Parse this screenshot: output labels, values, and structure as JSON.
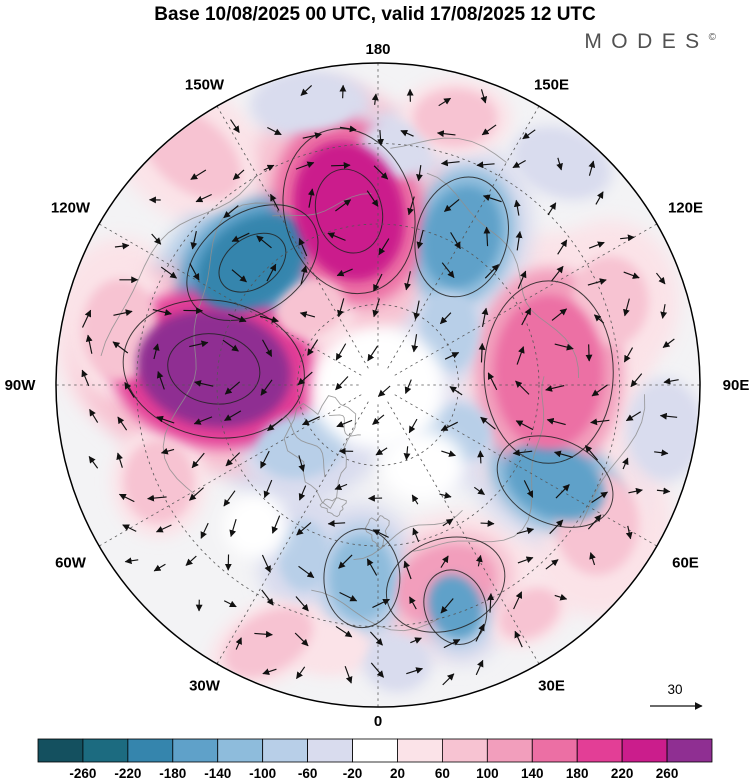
{
  "header": {
    "title": "Base 10/08/2025 00 UTC, valid 17/08/2025 12 UTC",
    "logo_text": "MODES",
    "logo_mark": "©"
  },
  "chart_data": {
    "type": "heatmap",
    "projection": "north_polar_stereographic",
    "title": "Base 10/08/2025 00 UTC, valid 17/08/2025 12 UTC",
    "longitude_labels": [
      {
        "text": "180",
        "lon": 180
      },
      {
        "text": "150W",
        "lon": -150
      },
      {
        "text": "150E",
        "lon": 150
      },
      {
        "text": "120W",
        "lon": -120
      },
      {
        "text": "120E",
        "lon": 120
      },
      {
        "text": "90W",
        "lon": -90
      },
      {
        "text": "90E",
        "lon": 90
      },
      {
        "text": "60W",
        "lon": -60
      },
      {
        "text": "60E",
        "lon": 60
      },
      {
        "text": "30W",
        "lon": -30
      },
      {
        "text": "30E",
        "lon": 30
      },
      {
        "text": "0",
        "lon": 0
      }
    ],
    "colorbar_levels": [
      -260,
      -220,
      -180,
      -140,
      -100,
      -60,
      -20,
      20,
      60,
      100,
      140,
      180,
      220,
      260
    ],
    "colorbar_colors": [
      "#14505f",
      "#1c6b80",
      "#3585ad",
      "#5fa1c9",
      "#8ebcdc",
      "#b8cfe8",
      "#d9dcee",
      "#ffffff",
      "#fbe3e8",
      "#f7c3d2",
      "#f29ebc",
      "#ec6fa4",
      "#e33e96",
      "#cb1d8c",
      "#8f2f92"
    ],
    "wind_reference": 30,
    "anomaly_centers": [
      {
        "fx": -0.09,
        "fy": -0.54,
        "v": 230,
        "rx": 0.17,
        "ry": 0.22,
        "rot": -15
      },
      {
        "fx": -0.51,
        "fy": -0.05,
        "v": 280,
        "rx": 0.24,
        "ry": 0.18,
        "rot": 10
      },
      {
        "fx": 0.53,
        "fy": -0.04,
        "v": 170,
        "rx": 0.17,
        "ry": 0.24,
        "rot": 0
      },
      {
        "fx": 0.21,
        "fy": 0.62,
        "v": 110,
        "rx": 0.16,
        "ry": 0.12,
        "rot": -20
      },
      {
        "fx": -0.58,
        "fy": -0.72,
        "v": 70,
        "rx": 0.18,
        "ry": 0.11,
        "rot": 40
      },
      {
        "fx": 0.68,
        "fy": 0.43,
        "v": 80,
        "rx": 0.13,
        "ry": 0.16,
        "rot": 0
      },
      {
        "fx": -0.34,
        "fy": 0.8,
        "v": 60,
        "rx": 0.15,
        "ry": 0.09,
        "rot": -30
      },
      {
        "fx": 0.24,
        "fy": -0.83,
        "v": 60,
        "rx": 0.13,
        "ry": 0.09,
        "rot": 0
      },
      {
        "fx": 0.72,
        "fy": -0.26,
        "v": 70,
        "rx": 0.12,
        "ry": 0.14,
        "rot": 0
      },
      {
        "fx": -0.39,
        "fy": -0.38,
        "v": -215,
        "rx": 0.19,
        "ry": 0.13,
        "rot": -35
      },
      {
        "fx": 0.26,
        "fy": -0.46,
        "v": -180,
        "rx": 0.12,
        "ry": 0.16,
        "rot": 15
      },
      {
        "fx": 0.55,
        "fy": 0.3,
        "v": -165,
        "rx": 0.16,
        "ry": 0.11,
        "rot": 25
      },
      {
        "fx": -0.05,
        "fy": 0.6,
        "v": -130,
        "rx": 0.1,
        "ry": 0.13,
        "rot": 0
      },
      {
        "fx": 0.24,
        "fy": 0.69,
        "v": -150,
        "rx": 0.08,
        "ry": 0.1,
        "rot": -20
      },
      {
        "fx": -0.24,
        "fy": 0.19,
        "v": -90,
        "rx": 0.14,
        "ry": 0.1,
        "rot": -10
      },
      {
        "fx": -0.21,
        "fy": -0.87,
        "v": -60,
        "rx": 0.14,
        "ry": 0.08,
        "rot": 0
      },
      {
        "fx": 0.05,
        "fy": -0.73,
        "v": -50,
        "rx": 0.11,
        "ry": 0.09,
        "rot": 0
      },
      {
        "fx": 0.24,
        "fy": 0.15,
        "v": -70,
        "rx": 0.11,
        "ry": 0.09,
        "rot": 0
      },
      {
        "fx": -0.23,
        "fy": 0.53,
        "v": -70,
        "rx": 0.08,
        "ry": 0.11,
        "rot": 0
      },
      {
        "fx": -0.8,
        "fy": -0.17,
        "v": 90,
        "rx": 0.12,
        "ry": 0.16,
        "rot": 0
      },
      {
        "fx": -0.68,
        "fy": 0.3,
        "v": 60,
        "rx": 0.11,
        "ry": 0.13,
        "rot": 0
      },
      {
        "fx": 0.22,
        "fy": -0.17,
        "v": -70,
        "rx": 0.09,
        "ry": 0.13,
        "rot": 0
      },
      {
        "fx": -0.21,
        "fy": -0.24,
        "v": 80,
        "rx": 0.11,
        "ry": 0.09,
        "rot": -20
      },
      {
        "fx": 0.89,
        "fy": 0.14,
        "v": -50,
        "rx": 0.09,
        "ry": 0.12,
        "rot": 0
      },
      {
        "fx": -0.15,
        "fy": 0.81,
        "v": 50,
        "rx": 0.11,
        "ry": 0.07,
        "rot": 0
      },
      {
        "fx": 0.06,
        "fy": 0.86,
        "v": -50,
        "rx": 0.08,
        "ry": 0.07,
        "rot": 0
      },
      {
        "fx": 0.57,
        "fy": -0.69,
        "v": -50,
        "rx": 0.12,
        "ry": 0.08,
        "rot": 20
      },
      {
        "fx": 0.47,
        "fy": 0.71,
        "v": 60,
        "rx": 0.1,
        "ry": 0.07,
        "rot": -30
      }
    ],
    "zero_regions": [
      {
        "fx": 0.0,
        "fy": 0.01,
        "rx": 0.21,
        "ry": 0.19
      },
      {
        "fx": 0.14,
        "fy": 0.25,
        "rx": 0.13,
        "ry": 0.11
      },
      {
        "fx": -0.38,
        "fy": 0.44,
        "rx": 0.1,
        "ry": 0.1
      }
    ]
  }
}
